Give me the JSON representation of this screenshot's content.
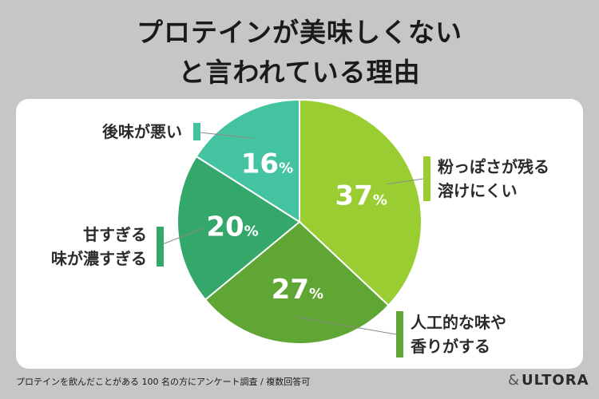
{
  "title_lines": [
    "プロテインが美味しくない",
    "と言われている理由"
  ],
  "chart_data": {
    "type": "pie",
    "start_angle_deg": 0,
    "direction": "clockwise",
    "slices": [
      {
        "label_lines": [
          "粉っぽさが残る",
          "溶けにくい"
        ],
        "value": 37,
        "display": "37",
        "color": "#9acd32"
      },
      {
        "label_lines": [
          "人工的な味や",
          "香りがする"
        ],
        "value": 27,
        "display": "27",
        "color": "#5fa634"
      },
      {
        "label_lines": [
          "甘すぎる",
          "味が濃すぎる"
        ],
        "value": 20,
        "display": "20",
        "color": "#33a86a"
      },
      {
        "label_lines": [
          "後味が悪い"
        ],
        "value": 16,
        "display": "16",
        "color": "#44c3a0"
      }
    ],
    "percent_symbol": "%"
  },
  "footnote": "プロテインを飲んだことがある 100 名の方にアンケート調査 / 複数回答可",
  "brand": {
    "amp": "&",
    "name": "ULTORA"
  }
}
